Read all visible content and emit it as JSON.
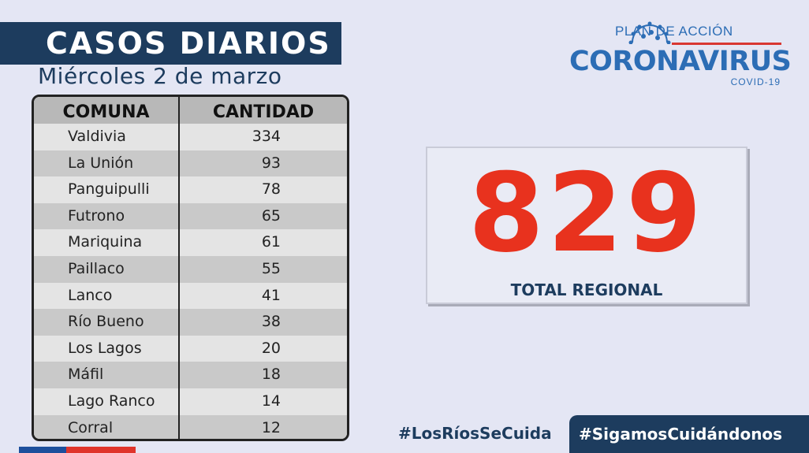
{
  "header": {
    "title": "CASOS DIARIOS",
    "date": "Miércoles 2 de marzo"
  },
  "logo": {
    "top_text": "PLAN DE ACCIÓN",
    "main_text": "CORONAVIRUS",
    "sub_text": "COVID-19",
    "icon": "coronavirus-icon"
  },
  "table": {
    "headers": {
      "comuna": "COMUNA",
      "cantidad": "CANTIDAD"
    },
    "rows": [
      {
        "comuna": "Valdivia",
        "cantidad": "334"
      },
      {
        "comuna": "La Unión",
        "cantidad": "93"
      },
      {
        "comuna": "Panguipulli",
        "cantidad": "78"
      },
      {
        "comuna": "Futrono",
        "cantidad": "65"
      },
      {
        "comuna": "Mariquina",
        "cantidad": "61"
      },
      {
        "comuna": "Paillaco",
        "cantidad": "55"
      },
      {
        "comuna": "Lanco",
        "cantidad": "41"
      },
      {
        "comuna": "Río Bueno",
        "cantidad": "38"
      },
      {
        "comuna": "Los Lagos",
        "cantidad": "20"
      },
      {
        "comuna": "Máfil",
        "cantidad": "18"
      },
      {
        "comuna": "Lago Ranco",
        "cantidad": "14"
      },
      {
        "comuna": "Corral",
        "cantidad": "12"
      }
    ]
  },
  "total": {
    "value": "829",
    "label": "TOTAL REGIONAL"
  },
  "footer": {
    "hashtag_1": "#LosRíosSeCuida",
    "hashtag_2": "#SigamosCuidándonos"
  },
  "colors": {
    "navy": "#1d3c5e",
    "accent_red": "#e8321e",
    "logo_blue": "#2c6db5"
  }
}
